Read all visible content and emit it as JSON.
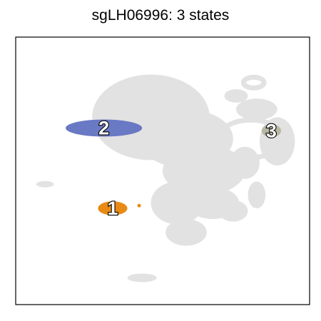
{
  "title": "sgLH06996: 3 states",
  "chart_data": {
    "type": "scatter",
    "title": "sgLH06996: 3 states",
    "xlabel": "",
    "ylabel": "",
    "axes_ticks": "none",
    "xlim": [
      0,
      100
    ],
    "ylim": [
      0,
      100
    ],
    "background_color": "#e2e2e2",
    "background_regions": [
      {
        "cx": 46,
        "cy": 70,
        "rx": 20,
        "ry": 16
      },
      {
        "cx": 58,
        "cy": 62,
        "rx": 16,
        "ry": 11
      },
      {
        "cx": 64,
        "cy": 50,
        "rx": 14,
        "ry": 9
      },
      {
        "cx": 55,
        "cy": 38,
        "rx": 9,
        "ry": 8
      },
      {
        "cx": 67,
        "cy": 38,
        "rx": 9,
        "ry": 6
      },
      {
        "cx": 74,
        "cy": 35,
        "rx": 5,
        "ry": 4
      },
      {
        "cx": 58,
        "cy": 27,
        "rx": 7,
        "ry": 5
      },
      {
        "cx": 60,
        "cy": 76,
        "rx": 3,
        "ry": 2.5
      },
      {
        "cx": 75,
        "cy": 78,
        "rx": 4,
        "ry": 2.5
      },
      {
        "cx": 82,
        "cy": 73,
        "rx": 7,
        "ry": 4
      },
      {
        "cx": 89,
        "cy": 61,
        "rx": 6,
        "ry": 9
      },
      {
        "cx": 78,
        "cy": 53,
        "rx": 5,
        "ry": 6
      },
      {
        "cx": 82,
        "cy": 41,
        "rx": 3,
        "ry": 5
      },
      {
        "cx": 10,
        "cy": 45,
        "rx": 3,
        "ry": 1.2
      },
      {
        "cx": 43,
        "cy": 10,
        "rx": 5,
        "ry": 1.6
      }
    ],
    "background_rings": [
      {
        "cx": 80,
        "cy": 62,
        "rx": 11,
        "ry": 7
      },
      {
        "cx": 81,
        "cy": 83,
        "rx": 3.5,
        "ry": 2
      }
    ],
    "states": [
      {
        "label": "1",
        "color": "#e88a14",
        "cx": 33,
        "cy": 36,
        "rx": 5,
        "ry": 2.6
      },
      {
        "label": "2",
        "color": "#6a79c4",
        "cx": 30,
        "cy": 66,
        "rx": 13,
        "ry": 3.2
      },
      {
        "label": "3",
        "color": "#b8b8a2",
        "cx": 87,
        "cy": 65,
        "rx": 3.3,
        "ry": 2.4
      }
    ],
    "outliers": [
      {
        "x": 42,
        "y": 37,
        "color": "#e88a14"
      }
    ]
  }
}
